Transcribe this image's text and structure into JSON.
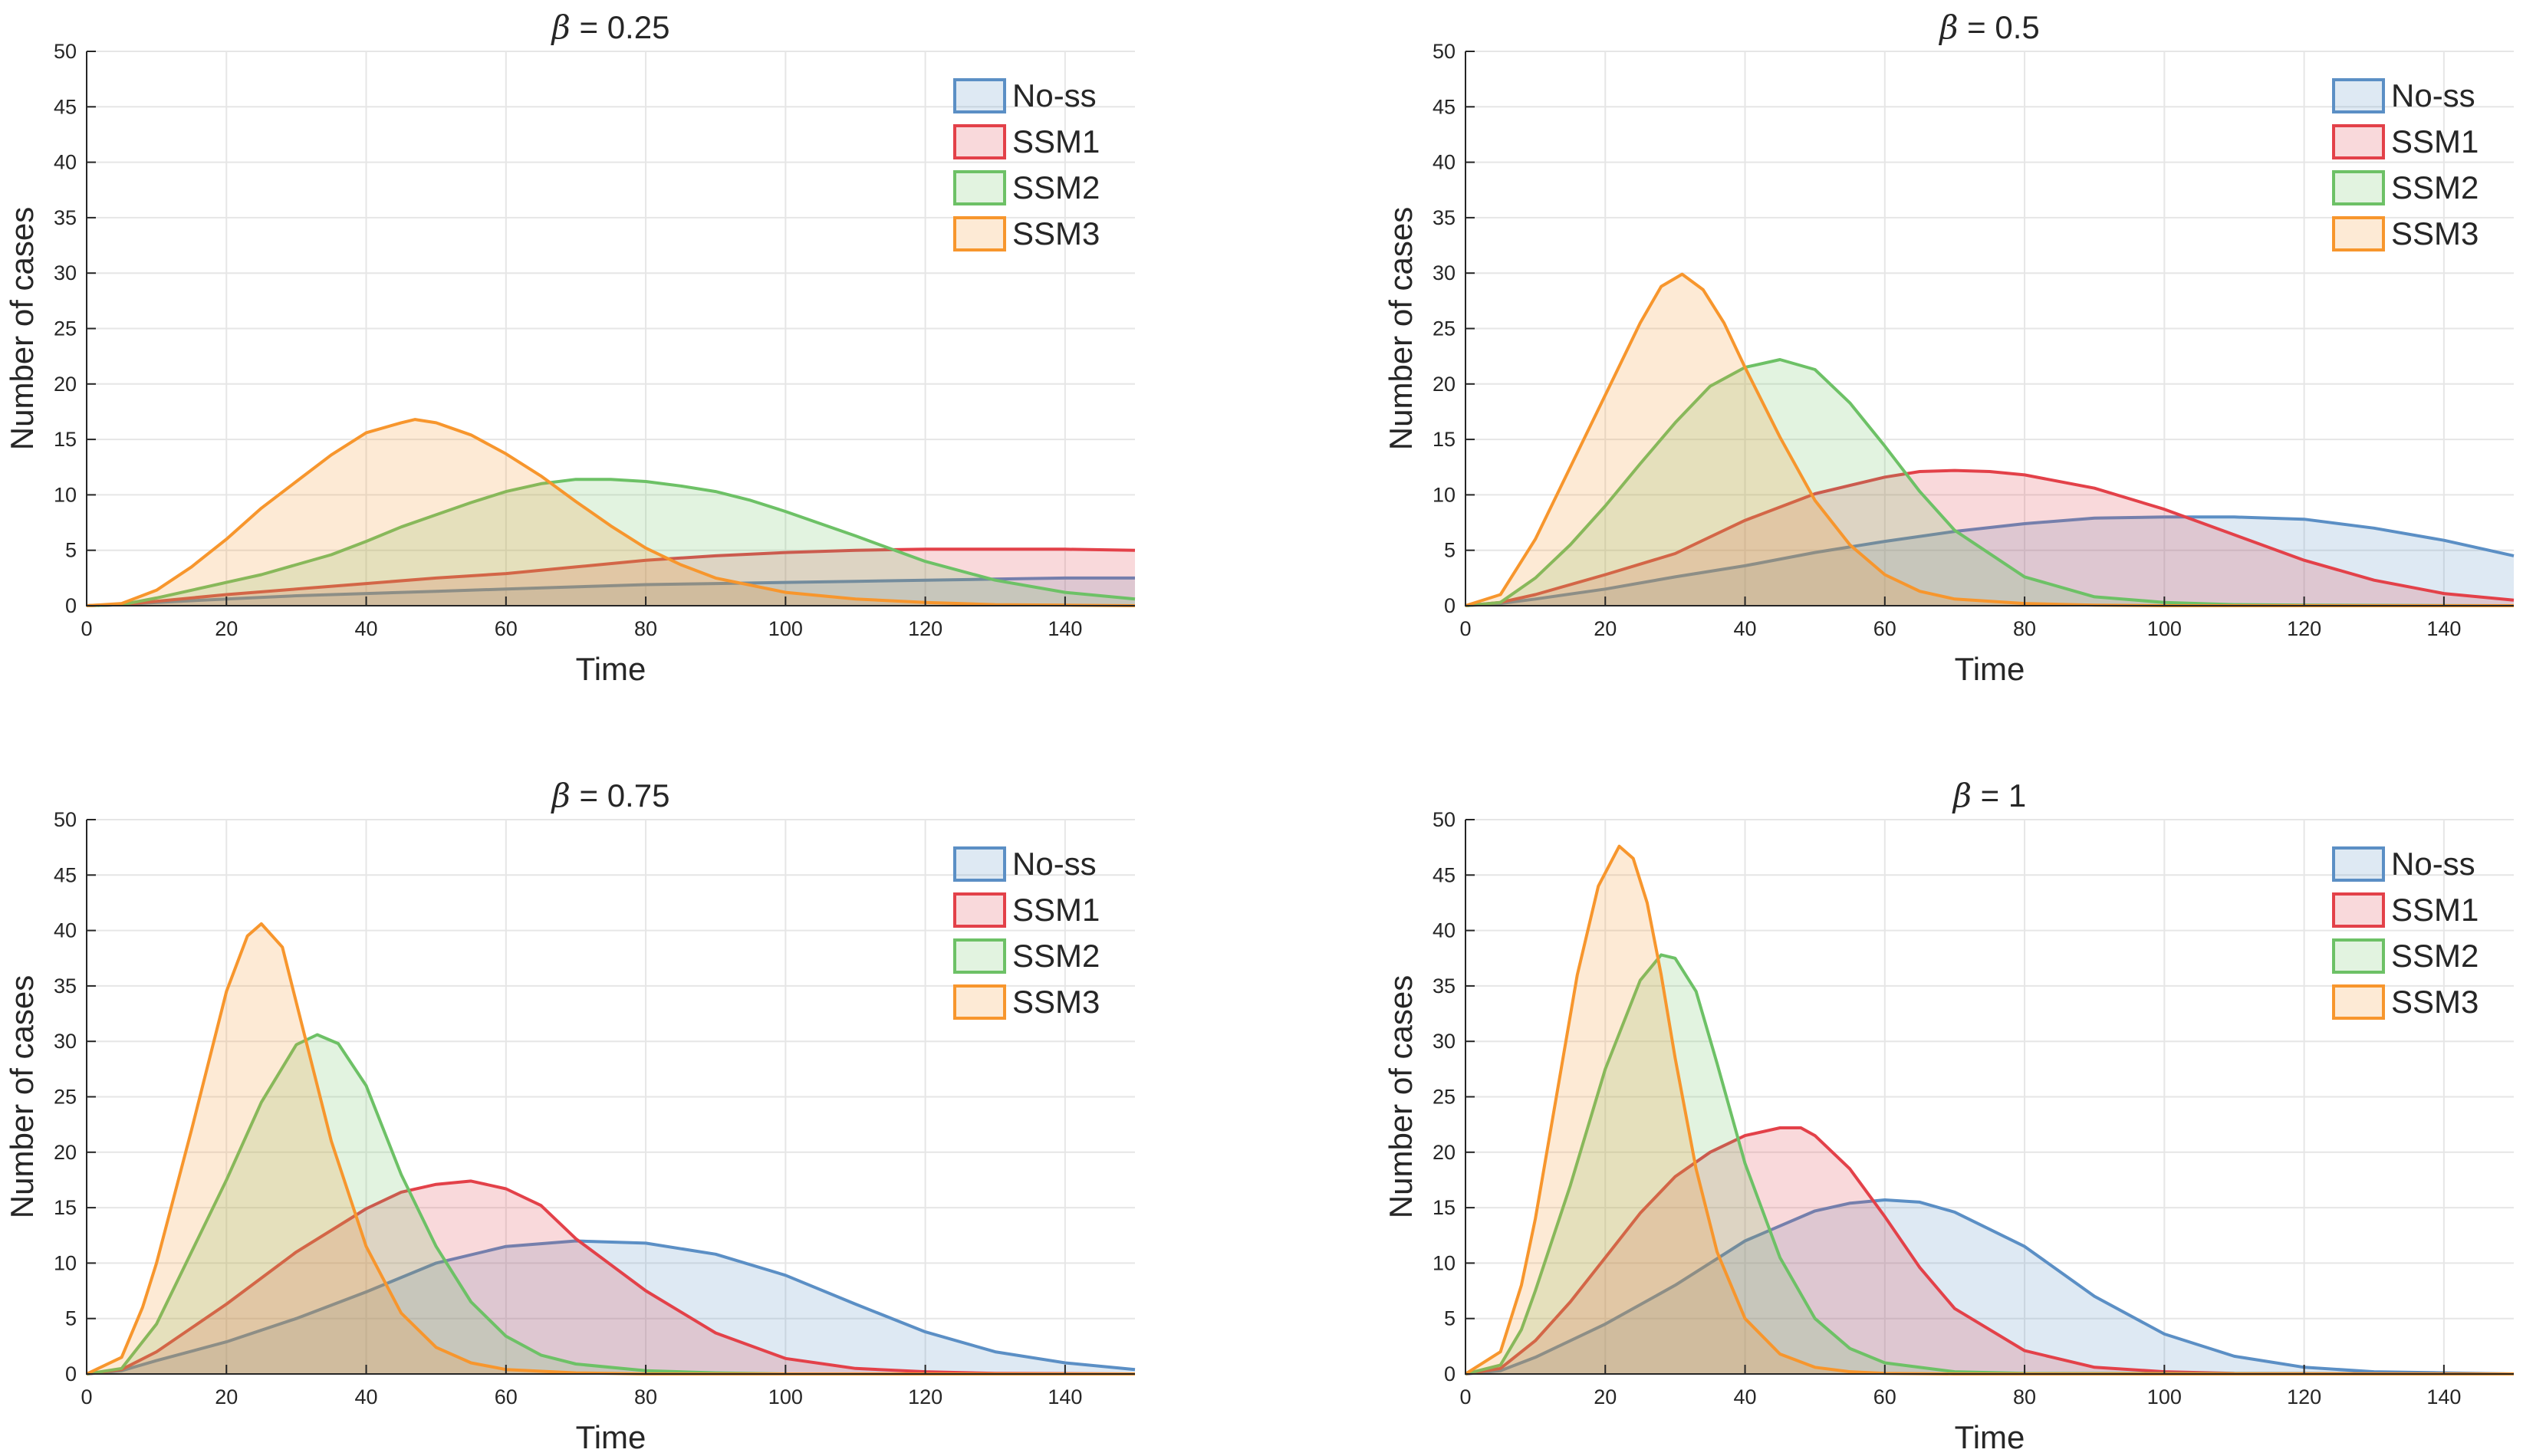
{
  "colors": {
    "No-ss": "#5b8fc5",
    "SSM1": "#e34149",
    "SSM2": "#6dc166",
    "SSM3": "#f7962d"
  },
  "chart_data": [
    {
      "type": "area",
      "title_symbol": "β",
      "title_value": " = 0.25",
      "xlabel": "Time",
      "ylabel": "Number of cases",
      "xlim": [
        0,
        150
      ],
      "ylim": [
        0,
        50
      ],
      "xticks": [
        0,
        20,
        40,
        60,
        80,
        100,
        120,
        140
      ],
      "yticks": [
        0,
        5,
        10,
        15,
        20,
        25,
        30,
        35,
        40,
        45,
        50
      ],
      "grid": true,
      "legend_position": "top-right",
      "series": [
        {
          "name": "No-ss",
          "x": [
            0,
            5,
            10,
            20,
            30,
            40,
            50,
            60,
            70,
            80,
            90,
            100,
            110,
            120,
            130,
            140,
            150
          ],
          "y": [
            0,
            0.1,
            0.3,
            0.6,
            0.9,
            1.1,
            1.3,
            1.5,
            1.7,
            1.9,
            2.0,
            2.1,
            2.2,
            2.3,
            2.4,
            2.5,
            2.5
          ]
        },
        {
          "name": "SSM1",
          "x": [
            0,
            5,
            10,
            20,
            30,
            40,
            50,
            60,
            70,
            80,
            90,
            100,
            110,
            120,
            130,
            140,
            150
          ],
          "y": [
            0,
            0.1,
            0.4,
            1.0,
            1.5,
            2.0,
            2.5,
            2.9,
            3.5,
            4.1,
            4.5,
            4.8,
            5.0,
            5.1,
            5.1,
            5.1,
            5.0
          ]
        },
        {
          "name": "SSM2",
          "x": [
            0,
            5,
            10,
            15,
            20,
            25,
            30,
            35,
            40,
            45,
            50,
            55,
            60,
            65,
            70,
            75,
            80,
            85,
            90,
            95,
            100,
            110,
            120,
            130,
            140,
            150
          ],
          "y": [
            0,
            0.1,
            0.7,
            1.4,
            2.1,
            2.8,
            3.7,
            4.6,
            5.8,
            7.1,
            8.2,
            9.3,
            10.3,
            11.0,
            11.4,
            11.4,
            11.2,
            10.8,
            10.3,
            9.5,
            8.5,
            6.3,
            4.0,
            2.3,
            1.2,
            0.6
          ]
        },
        {
          "name": "SSM3",
          "x": [
            0,
            5,
            10,
            15,
            20,
            25,
            30,
            35,
            40,
            45,
            47,
            50,
            55,
            60,
            65,
            70,
            75,
            80,
            85,
            90,
            100,
            110,
            120,
            130,
            140,
            150
          ],
          "y": [
            0,
            0.2,
            1.4,
            3.5,
            6.0,
            8.8,
            11.2,
            13.6,
            15.6,
            16.5,
            16.8,
            16.5,
            15.4,
            13.7,
            11.7,
            9.4,
            7.2,
            5.2,
            3.7,
            2.5,
            1.2,
            0.6,
            0.3,
            0.1,
            0.05,
            0
          ]
        }
      ]
    },
    {
      "type": "area",
      "title_symbol": "β",
      "title_value": " = 0.5",
      "xlabel": "Time",
      "ylabel": "Number of cases",
      "xlim": [
        0,
        150
      ],
      "ylim": [
        0,
        50
      ],
      "xticks": [
        0,
        20,
        40,
        60,
        80,
        100,
        120,
        140
      ],
      "yticks": [
        0,
        5,
        10,
        15,
        20,
        25,
        30,
        35,
        40,
        45,
        50
      ],
      "grid": true,
      "legend_position": "top-right",
      "series": [
        {
          "name": "No-ss",
          "x": [
            0,
            5,
            10,
            20,
            30,
            40,
            50,
            60,
            70,
            80,
            90,
            100,
            110,
            120,
            130,
            140,
            150
          ],
          "y": [
            0,
            0.2,
            0.6,
            1.5,
            2.6,
            3.6,
            4.8,
            5.8,
            6.7,
            7.4,
            7.9,
            8.0,
            8.0,
            7.8,
            7.0,
            5.9,
            4.5
          ]
        },
        {
          "name": "SSM1",
          "x": [
            0,
            5,
            10,
            20,
            30,
            40,
            50,
            60,
            65,
            70,
            75,
            80,
            90,
            100,
            110,
            120,
            130,
            140,
            150
          ],
          "y": [
            0,
            0.3,
            1.0,
            2.8,
            4.7,
            7.7,
            10.1,
            11.6,
            12.1,
            12.2,
            12.1,
            11.8,
            10.6,
            8.7,
            6.4,
            4.1,
            2.3,
            1.1,
            0.5
          ]
        },
        {
          "name": "SSM2",
          "x": [
            0,
            5,
            10,
            15,
            20,
            25,
            30,
            35,
            40,
            45,
            50,
            55,
            60,
            65,
            70,
            80,
            90,
            100,
            110,
            120,
            150
          ],
          "y": [
            0,
            0.3,
            2.5,
            5.5,
            9.0,
            12.8,
            16.5,
            19.8,
            21.5,
            22.2,
            21.3,
            18.3,
            14.4,
            10.3,
            6.8,
            2.6,
            0.8,
            0.3,
            0.1,
            0.05,
            0
          ]
        },
        {
          "name": "SSM3",
          "x": [
            0,
            5,
            10,
            15,
            20,
            25,
            28,
            31,
            34,
            37,
            40,
            45,
            50,
            55,
            60,
            65,
            70,
            80,
            90,
            100,
            150
          ],
          "y": [
            0,
            1.0,
            6.0,
            12.5,
            19.0,
            25.5,
            28.8,
            29.9,
            28.5,
            25.5,
            21.5,
            15.2,
            9.5,
            5.5,
            2.8,
            1.3,
            0.6,
            0.2,
            0.05,
            0,
            0
          ]
        }
      ]
    },
    {
      "type": "area",
      "title_symbol": "β",
      "title_value": " = 0.75",
      "xlabel": "Time",
      "ylabel": "Number of cases",
      "xlim": [
        0,
        150
      ],
      "ylim": [
        0,
        50
      ],
      "xticks": [
        0,
        20,
        40,
        60,
        80,
        100,
        120,
        140
      ],
      "yticks": [
        0,
        5,
        10,
        15,
        20,
        25,
        30,
        35,
        40,
        45,
        50
      ],
      "grid": true,
      "legend_position": "top-right",
      "series": [
        {
          "name": "No-ss",
          "x": [
            0,
            5,
            10,
            20,
            30,
            40,
            50,
            60,
            70,
            80,
            90,
            100,
            110,
            120,
            130,
            140,
            150
          ],
          "y": [
            0,
            0.3,
            1.2,
            2.9,
            5.0,
            7.4,
            10.0,
            11.5,
            12.0,
            11.8,
            10.8,
            8.9,
            6.3,
            3.8,
            2.0,
            1.0,
            0.4
          ]
        },
        {
          "name": "SSM1",
          "x": [
            0,
            5,
            10,
            20,
            30,
            40,
            45,
            50,
            55,
            60,
            65,
            70,
            80,
            90,
            100,
            110,
            120,
            130,
            150
          ],
          "y": [
            0,
            0.4,
            2.0,
            6.3,
            11.0,
            14.9,
            16.4,
            17.1,
            17.4,
            16.7,
            15.2,
            12.2,
            7.5,
            3.7,
            1.4,
            0.5,
            0.2,
            0.05,
            0
          ]
        },
        {
          "name": "SSM2",
          "x": [
            0,
            5,
            10,
            15,
            20,
            25,
            30,
            33,
            36,
            40,
            45,
            50,
            55,
            60,
            65,
            70,
            80,
            90,
            100,
            150
          ],
          "y": [
            0,
            0.5,
            4.5,
            11.0,
            17.5,
            24.5,
            29.7,
            30.6,
            29.8,
            26.0,
            18.0,
            11.5,
            6.5,
            3.4,
            1.7,
            0.9,
            0.3,
            0.1,
            0,
            0
          ]
        },
        {
          "name": "SSM3",
          "x": [
            0,
            5,
            8,
            10,
            15,
            20,
            23,
            25,
            28,
            30,
            35,
            40,
            45,
            50,
            55,
            60,
            70,
            80,
            150
          ],
          "y": [
            0,
            1.5,
            6.0,
            10.0,
            22.0,
            34.5,
            39.5,
            40.6,
            38.5,
            33.5,
            21.0,
            11.5,
            5.5,
            2.4,
            1.0,
            0.4,
            0.1,
            0,
            0
          ]
        }
      ]
    },
    {
      "type": "area",
      "title_symbol": "β",
      "title_value": " = 1",
      "xlabel": "Time",
      "ylabel": "Number of cases",
      "xlim": [
        0,
        150
      ],
      "ylim": [
        0,
        50
      ],
      "xticks": [
        0,
        20,
        40,
        60,
        80,
        100,
        120,
        140
      ],
      "yticks": [
        0,
        5,
        10,
        15,
        20,
        25,
        30,
        35,
        40,
        45,
        50
      ],
      "grid": true,
      "legend_position": "top-right",
      "series": [
        {
          "name": "No-ss",
          "x": [
            0,
            5,
            10,
            20,
            30,
            40,
            50,
            55,
            60,
            65,
            70,
            80,
            90,
            100,
            110,
            120,
            130,
            140,
            150
          ],
          "y": [
            0,
            0.3,
            1.5,
            4.5,
            8.0,
            12.0,
            14.7,
            15.4,
            15.7,
            15.5,
            14.6,
            11.5,
            7.0,
            3.6,
            1.6,
            0.6,
            0.2,
            0.1,
            0
          ]
        },
        {
          "name": "SSM1",
          "x": [
            0,
            5,
            10,
            15,
            20,
            25,
            30,
            35,
            40,
            45,
            48,
            50,
            55,
            60,
            65,
            70,
            80,
            90,
            100,
            110,
            150
          ],
          "y": [
            0,
            0.5,
            3.0,
            6.5,
            10.5,
            14.5,
            17.8,
            20.0,
            21.5,
            22.2,
            22.2,
            21.5,
            18.5,
            14.2,
            9.6,
            5.9,
            2.1,
            0.6,
            0.2,
            0.05,
            0
          ]
        },
        {
          "name": "SSM2",
          "x": [
            0,
            5,
            8,
            10,
            15,
            20,
            25,
            28,
            30,
            33,
            36,
            40,
            45,
            50,
            55,
            60,
            70,
            80,
            150
          ],
          "y": [
            0,
            0.8,
            4.0,
            7.5,
            17.0,
            27.5,
            35.5,
            37.8,
            37.5,
            34.5,
            28.0,
            19.0,
            10.5,
            5.0,
            2.3,
            1.0,
            0.2,
            0.05,
            0
          ]
        },
        {
          "name": "SSM3",
          "x": [
            0,
            5,
            8,
            10,
            13,
            16,
            19,
            22,
            24,
            26,
            28,
            30,
            33,
            36,
            40,
            45,
            50,
            55,
            60,
            70,
            150
          ],
          "y": [
            0,
            2.0,
            8.0,
            14.0,
            25.0,
            36.0,
            44.0,
            47.6,
            46.5,
            42.5,
            36.0,
            28.5,
            18.5,
            11.0,
            5.0,
            1.8,
            0.6,
            0.2,
            0.05,
            0,
            0
          ]
        }
      ]
    }
  ]
}
